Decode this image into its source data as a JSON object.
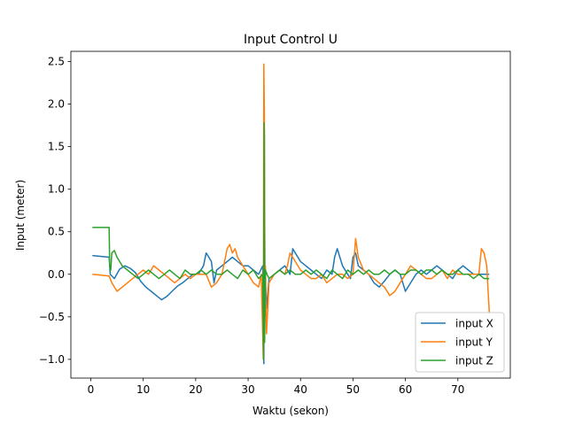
{
  "chart_data": {
    "type": "line",
    "title": "Input Control U",
    "xlabel": "Waktu (sekon)",
    "ylabel": "Input (meter)",
    "xlim": [
      -3.8,
      80.0
    ],
    "ylim": [
      -1.22,
      2.62
    ],
    "xticks": [
      0,
      10,
      20,
      30,
      40,
      50,
      60,
      70
    ],
    "xtick_labels": [
      "0",
      "10",
      "20",
      "30",
      "40",
      "50",
      "60",
      "70"
    ],
    "yticks": [
      -1.0,
      -0.5,
      0.0,
      0.5,
      1.0,
      1.5,
      2.0,
      2.5
    ],
    "ytick_labels": [
      "−1.0",
      "−0.5",
      "0.0",
      "0.5",
      "1.0",
      "1.5",
      "2.0",
      "2.5"
    ],
    "grid": false,
    "legend_position": "lower-right",
    "series": [
      {
        "name": "input X",
        "color": "#1f77b4",
        "x": [
          0.3,
          3.5,
          3.7,
          4.5,
          5.5,
          6.5,
          7.5,
          8.5,
          9.5,
          10.5,
          11.5,
          12.5,
          13.5,
          14.5,
          15.5,
          16.5,
          17.5,
          18.5,
          19.5,
          20.5,
          21.5,
          22,
          22.5,
          23,
          23.5,
          24,
          25,
          26,
          27,
          28,
          29,
          30,
          31,
          32,
          32.8,
          33.0,
          33.1,
          33.2,
          33.5,
          34,
          35,
          36,
          37,
          38,
          38.5,
          39,
          40,
          41,
          42,
          43,
          44,
          45,
          46,
          46.5,
          47,
          47.5,
          48,
          49,
          49.5,
          50,
          50.5,
          51,
          52,
          53,
          54,
          55,
          56,
          57,
          58,
          59,
          60,
          61,
          62,
          63,
          64,
          65,
          66,
          67,
          68,
          69,
          70,
          71,
          72,
          73,
          74,
          75,
          76
        ],
        "y": [
          0.22,
          0.2,
          0.0,
          -0.05,
          0.06,
          0.1,
          0.07,
          0.02,
          -0.08,
          -0.15,
          -0.2,
          -0.25,
          -0.3,
          -0.26,
          -0.2,
          -0.14,
          -0.1,
          -0.05,
          0.0,
          0.0,
          0.1,
          0.25,
          0.2,
          0.15,
          -0.1,
          0.05,
          0.1,
          0.15,
          0.2,
          0.15,
          0.1,
          0.1,
          0.05,
          0.0,
          0.1,
          -1.05,
          1.7,
          0.1,
          -0.4,
          -0.05,
          0.0,
          0.05,
          0.1,
          0.0,
          0.3,
          0.25,
          0.15,
          0.1,
          0.05,
          0.0,
          -0.05,
          0.05,
          0.0,
          0.2,
          0.3,
          0.2,
          0.1,
          0.0,
          -0.05,
          0.2,
          0.25,
          0.1,
          0.05,
          0.0,
          -0.1,
          -0.15,
          -0.08,
          0.0,
          0.05,
          0.0,
          -0.2,
          -0.1,
          0.0,
          0.05,
          0.0,
          0.05,
          0.1,
          0.05,
          0.0,
          -0.05,
          0.05,
          0.1,
          0.05,
          0.0,
          0.0,
          0.0,
          0.0
        ]
      },
      {
        "name": "input Y",
        "color": "#ff7f0e",
        "x": [
          0.3,
          3.5,
          4,
          5,
          6,
          7,
          8,
          9,
          10,
          11,
          12,
          13,
          14,
          15,
          16,
          17,
          18,
          19,
          20,
          21,
          22,
          23,
          24,
          25,
          26,
          26.5,
          27,
          27.5,
          28,
          29,
          30,
          31,
          32,
          32.5,
          32.9,
          33.0,
          33.1,
          33.2,
          33.3,
          33.5,
          34,
          35,
          36,
          37,
          37.5,
          38,
          39,
          40,
          41,
          42,
          43,
          44,
          45,
          46,
          47,
          48,
          49,
          50,
          50.5,
          51,
          52,
          53,
          54,
          55,
          56,
          57,
          58,
          59,
          60,
          61,
          62,
          63,
          64,
          65,
          66,
          67,
          68,
          69,
          70,
          71,
          72,
          73,
          74,
          74.5,
          75,
          75.5,
          76
        ],
        "y": [
          0.0,
          -0.02,
          -0.1,
          -0.2,
          -0.15,
          -0.1,
          -0.05,
          0.0,
          0.05,
          0.0,
          0.1,
          0.05,
          0.0,
          -0.05,
          -0.1,
          -0.05,
          0.0,
          -0.05,
          0.0,
          0.0,
          0.0,
          -0.15,
          -0.1,
          0.0,
          0.3,
          0.35,
          0.25,
          0.3,
          0.2,
          0.1,
          0.0,
          -0.1,
          -0.15,
          0.0,
          -1.0,
          2.47,
          1.86,
          -0.5,
          0.1,
          -0.7,
          -0.1,
          0.0,
          0.05,
          0.0,
          0.1,
          0.25,
          0.15,
          0.05,
          0.0,
          -0.05,
          -0.05,
          0.0,
          -0.1,
          -0.05,
          0.0,
          0.0,
          -0.05,
          0.0,
          0.42,
          0.2,
          0.05,
          0.0,
          -0.05,
          -0.1,
          -0.15,
          -0.25,
          -0.2,
          -0.1,
          0.0,
          0.1,
          0.05,
          0.0,
          -0.05,
          -0.05,
          0.0,
          0.05,
          -0.05,
          0.05,
          0.0,
          0.0,
          0.0,
          0.0,
          0.0,
          0.3,
          0.25,
          0.1,
          -0.45
        ]
      },
      {
        "name": "input Z",
        "color": "#2ca02c",
        "x": [
          0.3,
          3.5,
          3.6,
          3.8,
          4,
          4.5,
          5,
          5.5,
          6,
          7,
          8,
          9,
          10,
          11,
          12,
          13,
          14,
          15,
          16,
          17,
          18,
          19,
          20,
          21,
          22,
          23,
          24,
          25,
          26,
          27,
          28,
          29,
          30,
          31,
          32,
          32.8,
          32.95,
          33.05,
          33.15,
          33.3,
          33.6,
          34,
          35,
          36,
          37,
          38,
          39,
          40,
          41,
          42,
          43,
          44,
          45,
          46,
          47,
          48,
          49,
          50,
          51,
          52,
          53,
          54,
          55,
          56,
          57,
          58,
          59,
          60,
          61,
          62,
          63,
          64,
          65,
          66,
          67,
          68,
          69,
          70,
          71,
          72,
          73,
          74,
          75,
          76
        ],
        "y": [
          0.55,
          0.55,
          0.1,
          0.05,
          0.25,
          0.28,
          0.2,
          0.15,
          0.1,
          0.05,
          0.0,
          -0.05,
          0.0,
          0.05,
          0.0,
          -0.05,
          0.0,
          0.05,
          0.0,
          -0.05,
          0.05,
          0.0,
          0.0,
          0.05,
          0.0,
          0.05,
          0.0,
          0.0,
          0.05,
          0.0,
          -0.05,
          0.05,
          0.0,
          0.05,
          -0.05,
          0.0,
          -1.0,
          1.78,
          -0.8,
          0.05,
          0.0,
          -0.05,
          0.0,
          0.05,
          0.0,
          0.05,
          0.0,
          0.0,
          0.05,
          0.0,
          0.05,
          0.0,
          -0.05,
          0.05,
          0.0,
          -0.05,
          0.05,
          0.0,
          0.05,
          0.0,
          0.05,
          0.0,
          0.0,
          0.05,
          0.0,
          0.05,
          0.0,
          0.0,
          0.05,
          0.05,
          0.0,
          0.05,
          0.05,
          0.0,
          0.05,
          0.0,
          0.0,
          0.05,
          0.0,
          0.0,
          -0.05,
          0.0,
          -0.05,
          -0.05
        ]
      }
    ]
  }
}
